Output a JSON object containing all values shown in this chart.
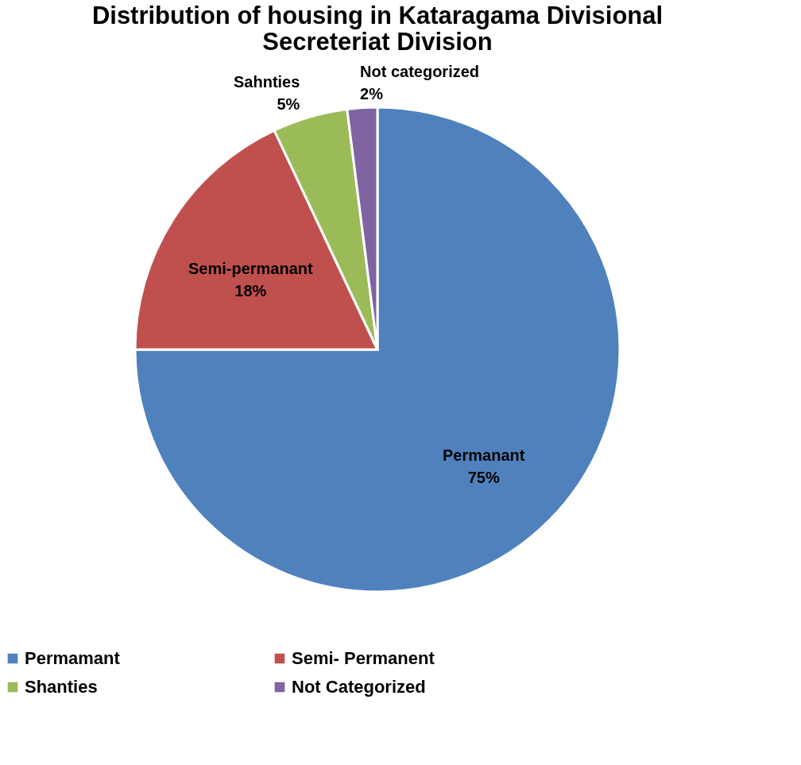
{
  "chart_data": {
    "type": "pie",
    "title": "Distribution of housing in Kataragama Divisional Secreteriat Division",
    "categories": [
      "Permamant",
      "Semi- Permanent",
      "Shanties",
      "Not Categorized"
    ],
    "values": [
      75,
      18,
      5,
      2
    ],
    "colors": [
      "#4f81bd",
      "#c0504d",
      "#9bbb59",
      "#8064a2"
    ],
    "value_labels": [
      "Permanant\n75%",
      "Semi-permanant\n18%",
      "Sahnties\n5%",
      "Not categorized\n2%"
    ],
    "legend": "bottom"
  }
}
